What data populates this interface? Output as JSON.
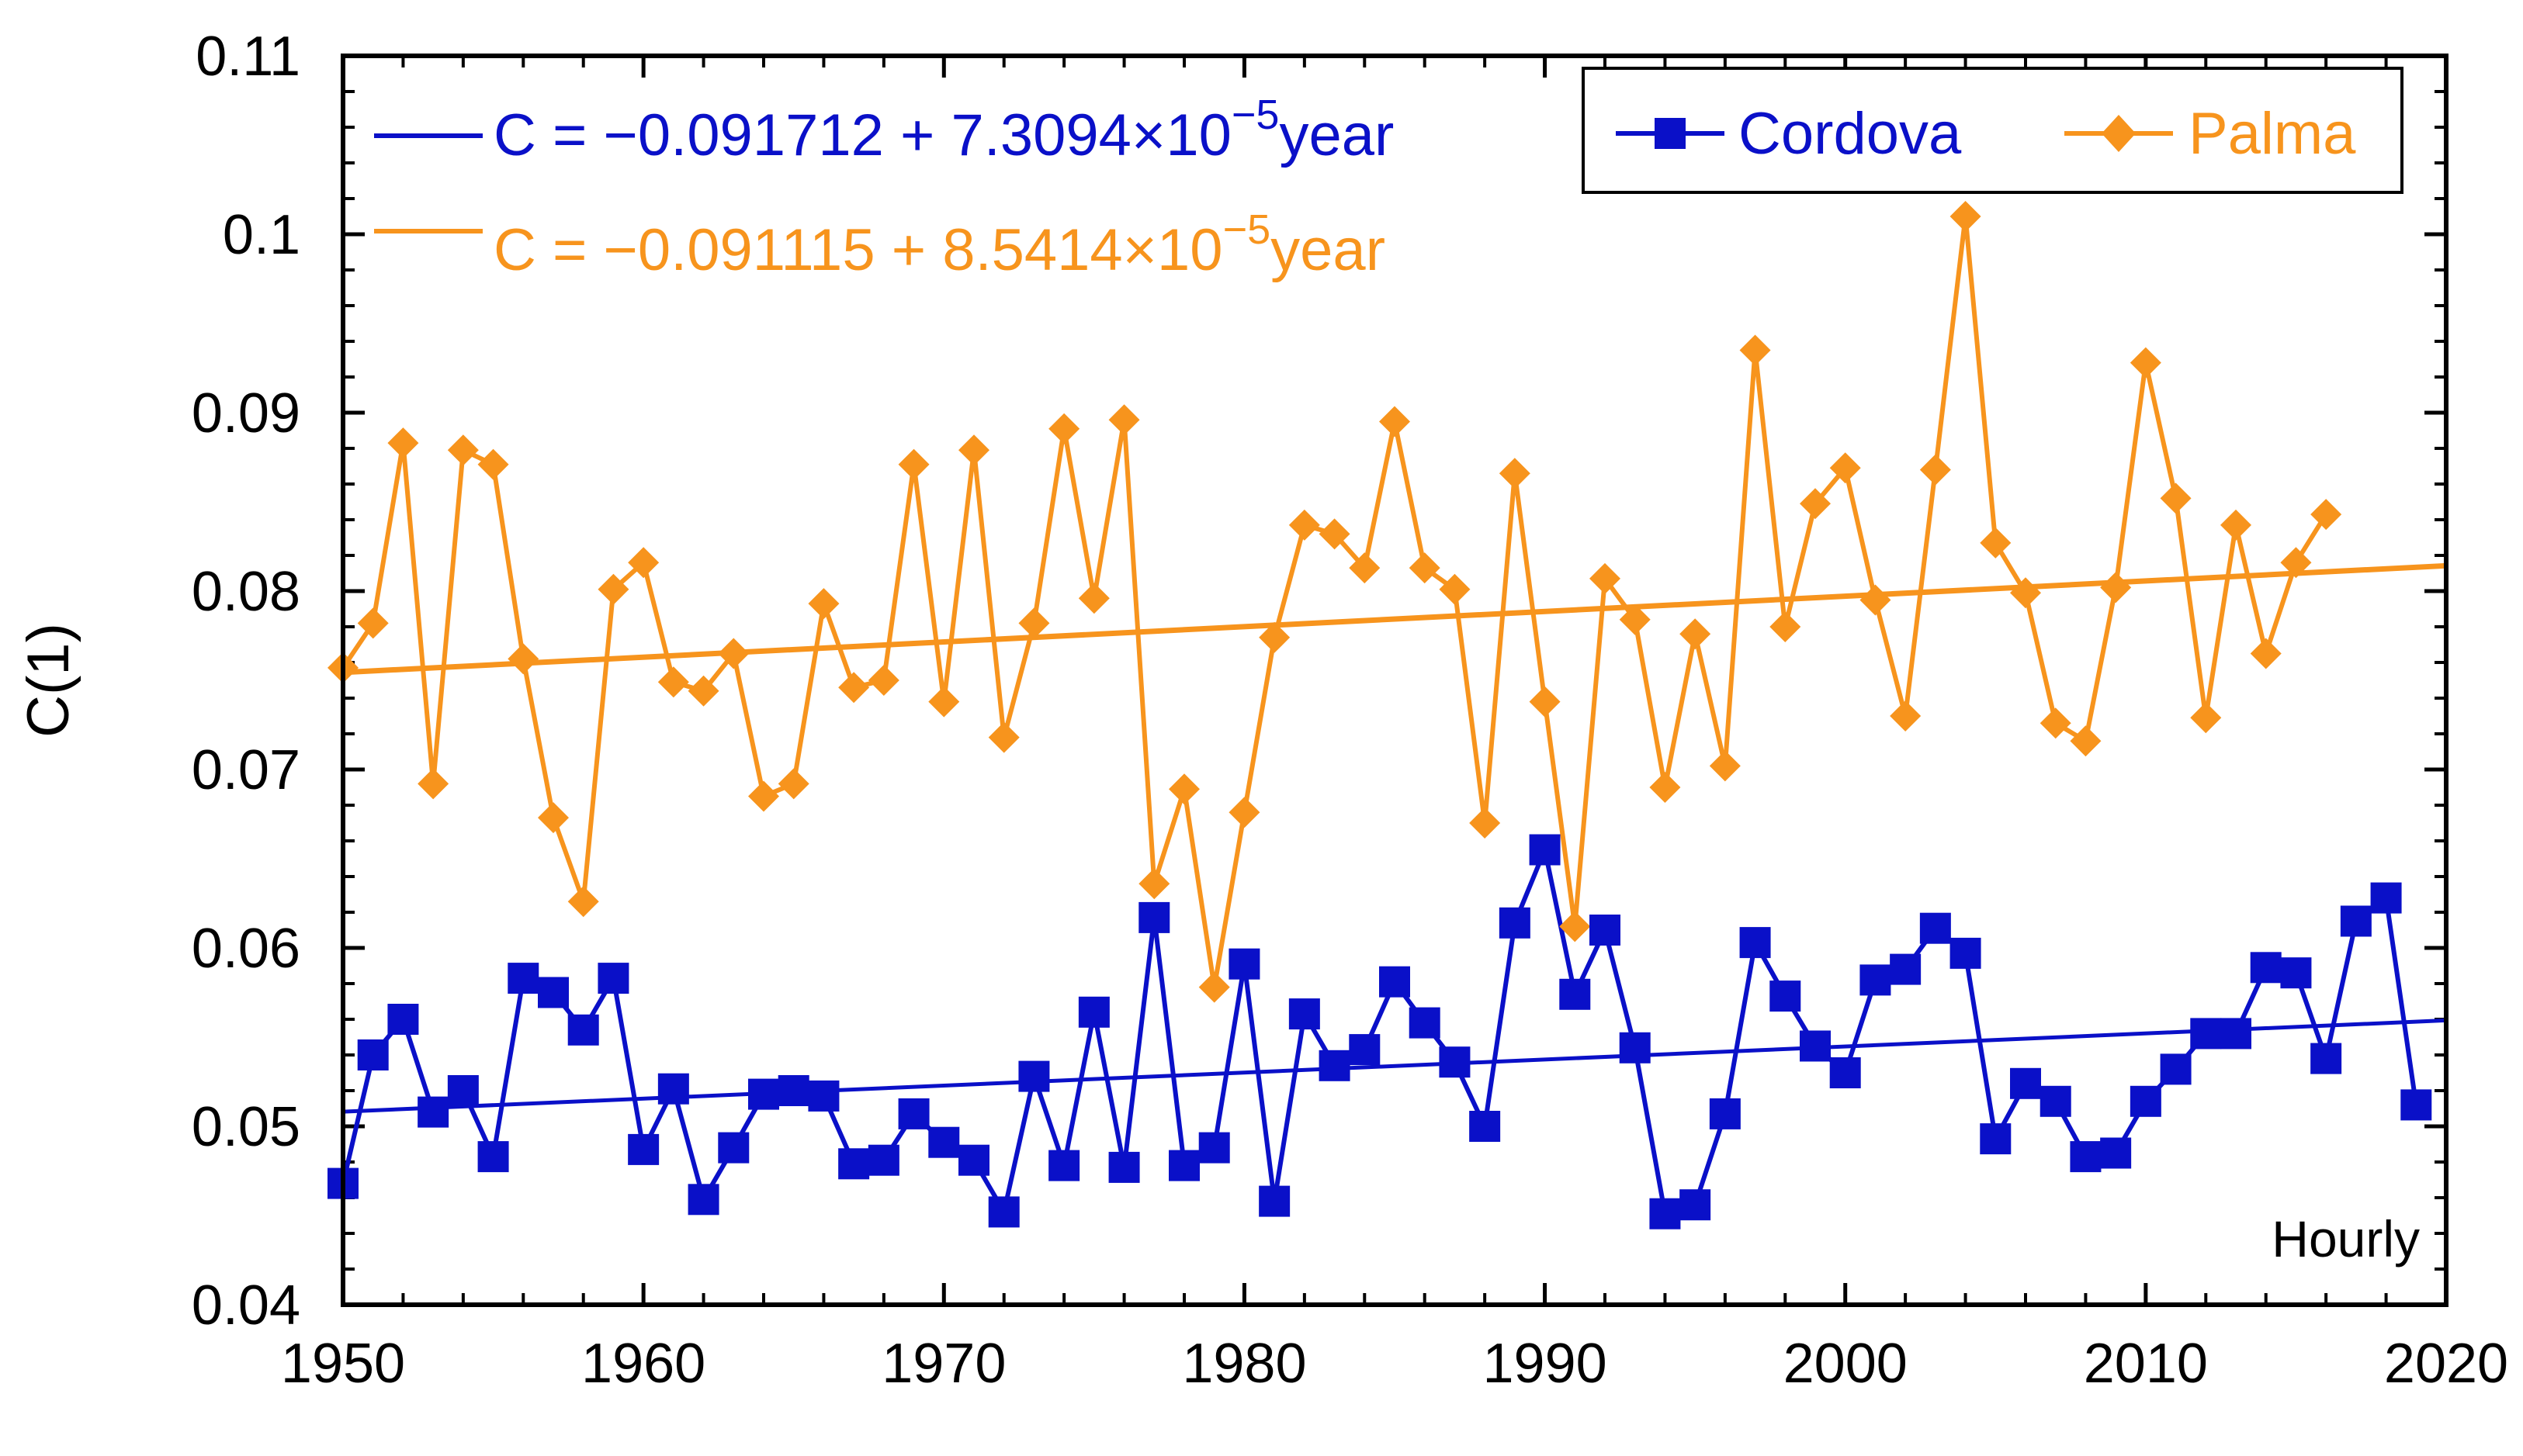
{
  "chart_data": {
    "type": "line",
    "title": "",
    "xlabel": "",
    "ylabel": "C(1)",
    "xlim": [
      1950,
      2020
    ],
    "ylim": [
      0.04,
      0.11
    ],
    "x_ticks": [
      "1950",
      "1960",
      "1970",
      "1980",
      "1990",
      "2000",
      "2010",
      "2020"
    ],
    "y_ticks": [
      "0.04",
      "0.05",
      "0.06",
      "0.07",
      "0.08",
      "0.09",
      "0.1",
      "0.11"
    ],
    "legend_position": "top-right",
    "annotation": "Hourly",
    "colors": {
      "cordova": "#0a10c8",
      "palma": "#f7941d"
    },
    "series": [
      {
        "name": "Cordova",
        "marker": "square",
        "x": [
          1950,
          1951,
          1952,
          1953,
          1954,
          1955,
          1956,
          1957,
          1958,
          1959,
          1960,
          1961,
          1962,
          1963,
          1964,
          1965,
          1966,
          1967,
          1968,
          1969,
          1970,
          1971,
          1972,
          1973,
          1974,
          1975,
          1976,
          1977,
          1978,
          1979,
          1980,
          1981,
          1982,
          1983,
          1984,
          1985,
          1986,
          1987,
          1988,
          1989,
          1990,
          1991,
          1992,
          1993,
          1994,
          1995,
          1996,
          1997,
          1998,
          1999,
          2000,
          2001,
          2002,
          2003,
          2004,
          2005,
          2006,
          2007,
          2008,
          2009,
          2010,
          2011,
          2012,
          2013,
          2014,
          2015,
          2016,
          2017,
          2018,
          2019
        ],
        "values": [
          0.0468,
          0.054,
          0.056,
          0.0508,
          0.052,
          0.0483,
          0.0583,
          0.0575,
          0.0554,
          0.0583,
          0.0487,
          0.0521,
          0.0459,
          0.0488,
          0.0518,
          0.052,
          0.0517,
          0.0479,
          0.0481,
          0.0507,
          0.0491,
          0.0481,
          0.0452,
          0.0528,
          0.0478,
          0.0564,
          0.0477,
          0.0617,
          0.0478,
          0.0488,
          0.0591,
          0.0458,
          0.0563,
          0.0534,
          0.0543,
          0.0581,
          0.0558,
          0.0536,
          0.05,
          0.0614,
          0.0655,
          0.0574,
          0.061,
          0.0544,
          0.0451,
          0.0456,
          0.0507,
          0.0603,
          0.0573,
          0.0545,
          0.053,
          0.0582,
          0.0588,
          0.0611,
          0.0597,
          0.0493,
          0.0524,
          0.0514,
          0.0483,
          0.0485,
          0.0514,
          0.0532,
          0.0552,
          0.0552,
          0.0589,
          0.0586,
          0.0538,
          0.0615,
          0.0628,
          0.0512
        ]
      },
      {
        "name": "Palma",
        "marker": "diamond",
        "x": [
          1950,
          1951,
          1952,
          1953,
          1954,
          1955,
          1956,
          1957,
          1958,
          1959,
          1960,
          1961,
          1962,
          1963,
          1964,
          1965,
          1966,
          1967,
          1968,
          1969,
          1970,
          1971,
          1972,
          1973,
          1974,
          1975,
          1976,
          1977,
          1978,
          1979,
          1980,
          1981,
          1982,
          1983,
          1984,
          1985,
          1986,
          1987,
          1988,
          1989,
          1990,
          1991,
          1992,
          1993,
          1994,
          1995,
          1996,
          1997,
          1998,
          1999,
          2000,
          2001,
          2002,
          2003,
          2004,
          2005,
          2006,
          2007,
          2008,
          2009,
          2010,
          2011,
          2012,
          2013,
          2014,
          2015,
          2016
        ],
        "values": [
          0.0757,
          0.0782,
          0.0883,
          0.0692,
          0.0879,
          0.0871,
          0.0762,
          0.0673,
          0.0626,
          0.0801,
          0.0816,
          0.0749,
          0.0744,
          0.0765,
          0.0685,
          0.0692,
          0.0793,
          0.0746,
          0.075,
          0.0871,
          0.0738,
          0.0879,
          0.0718,
          0.0782,
          0.0891,
          0.0796,
          0.0896,
          0.0636,
          0.0689,
          0.0578,
          0.0676,
          0.0774,
          0.0837,
          0.0832,
          0.0813,
          0.0895,
          0.0813,
          0.0801,
          0.067,
          0.0866,
          0.0738,
          0.0612,
          0.0807,
          0.0784,
          0.069,
          0.0776,
          0.0702,
          0.0935,
          0.078,
          0.0849,
          0.0869,
          0.0795,
          0.073,
          0.0868,
          0.101,
          0.0827,
          0.0799,
          0.0726,
          0.0716,
          0.0802,
          0.0928,
          0.0852,
          0.0729,
          0.0837,
          0.0765,
          0.0816,
          0.0843
        ]
      }
    ],
    "fits": [
      {
        "series": "Cordova",
        "intercept": -0.091712,
        "slope": 7.3094e-05,
        "label": "C = −0.091712 + 7.3094×10",
        "exponent": "−5",
        "suffix": "year"
      },
      {
        "series": "Palma",
        "intercept": -0.091115,
        "slope": 8.5414e-05,
        "label": "C = −0.091115 + 8.5414×10",
        "exponent": "−5",
        "suffix": "year"
      }
    ]
  }
}
